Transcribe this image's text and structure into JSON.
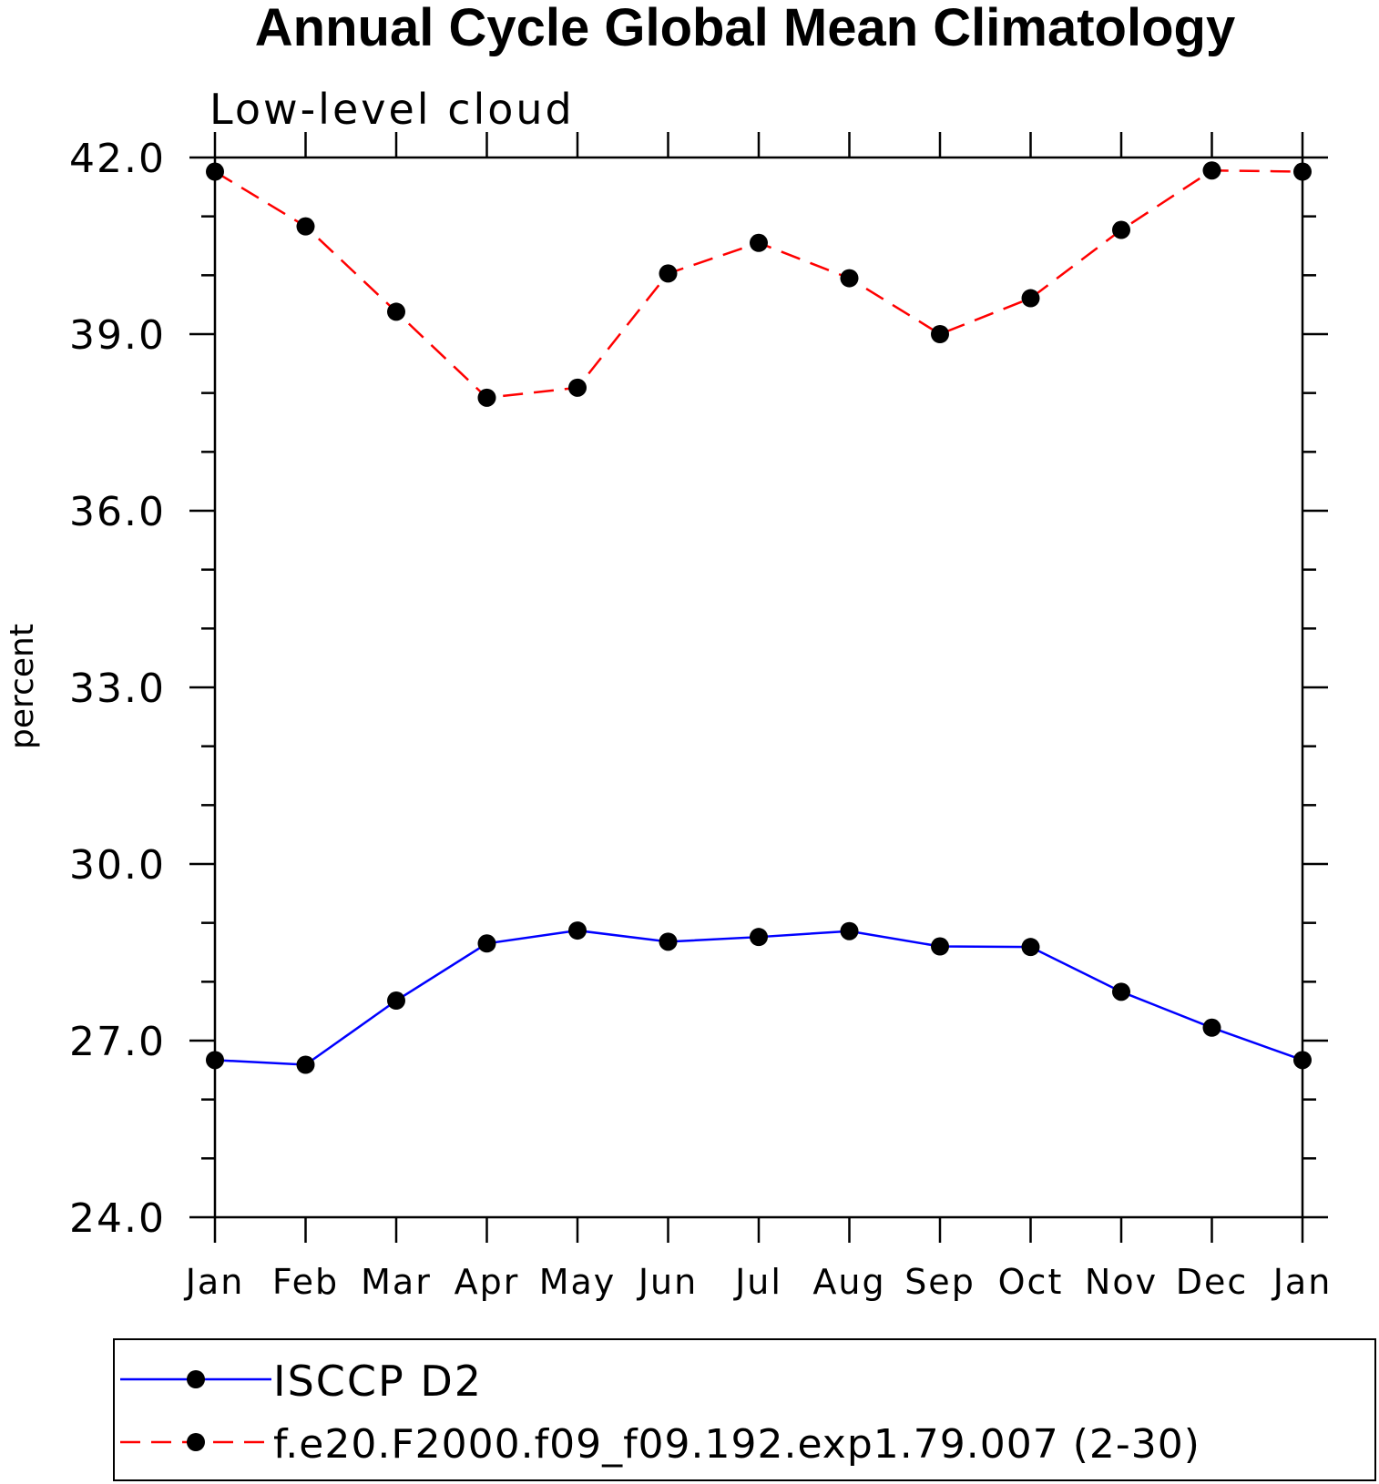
{
  "chart_data": {
    "type": "line",
    "title": "Annual Cycle Global Mean Climatology",
    "subtitle": "Low-level cloud",
    "xlabel": "",
    "ylabel": "percent",
    "categories": [
      "Jan",
      "Feb",
      "Mar",
      "Apr",
      "May",
      "Jun",
      "Jul",
      "Aug",
      "Sep",
      "Oct",
      "Nov",
      "Dec",
      "Jan"
    ],
    "ylim": [
      24.0,
      42.0
    ],
    "yticks": [
      24.0,
      27.0,
      30.0,
      33.0,
      36.0,
      39.0,
      42.0
    ],
    "ytick_labels": [
      "24.0",
      "27.0",
      "30.0",
      "33.0",
      "36.0",
      "39.0",
      "42.0"
    ],
    "grid": false,
    "legend_position": "bottom",
    "series": [
      {
        "name": "ISCCP D2",
        "color": "#0000ff",
        "line_style": "solid",
        "marker": "filled-circle",
        "values": [
          26.67,
          26.59,
          27.68,
          28.65,
          28.87,
          28.68,
          28.76,
          28.86,
          28.6,
          28.59,
          27.83,
          27.22,
          26.67
        ]
      },
      {
        "name": "f.e20.F2000.f09_f09.192.exp1.79.007 (2-30)",
        "color": "#ff0000",
        "line_style": "dashed",
        "marker": "filled-circle",
        "values": [
          41.76,
          40.83,
          39.38,
          37.92,
          38.09,
          40.03,
          40.55,
          39.95,
          39.0,
          39.61,
          40.77,
          41.78,
          41.76
        ]
      }
    ]
  }
}
